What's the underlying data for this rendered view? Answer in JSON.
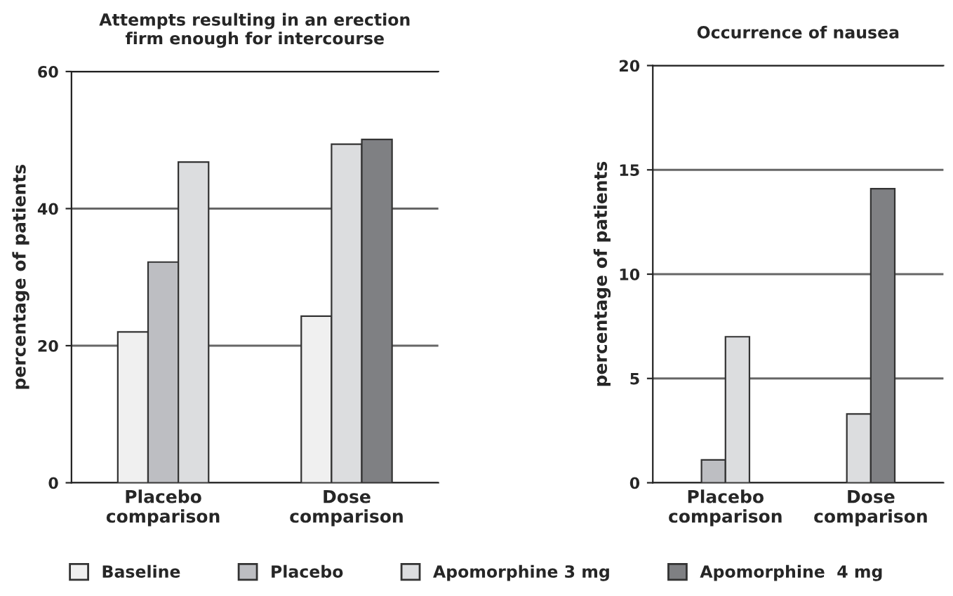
{
  "chart_data": [
    {
      "type": "bar",
      "title": "Attempts resulting in an erection\nfirm enough for intercourse",
      "ylabel": "percentage of patients",
      "categories": [
        "Placebo\ncomparison",
        "Dose\ncomparison"
      ],
      "series": [
        {
          "name": "Baseline",
          "color": "#f0f0f0",
          "values": [
            22,
            24.3
          ]
        },
        {
          "name": "Placebo",
          "color": "#bdbec2",
          "values": [
            32.2,
            null
          ]
        },
        {
          "name": "Apomorphine 3 mg",
          "color": "#dcdddf",
          "values": [
            46.8,
            49.4
          ]
        },
        {
          "name": "Apomorphine  4 mg",
          "color": "#7f8083",
          "values": [
            null,
            50.1
          ]
        }
      ],
      "ylim": [
        0,
        60
      ],
      "yticks": [
        0,
        20,
        40,
        60
      ],
      "grid": "y",
      "legend": "bottom"
    },
    {
      "type": "bar",
      "title": "Occurrence of nausea",
      "ylabel": "percentage of patients",
      "categories": [
        "Placebo\ncomparison",
        "Dose\ncomparison"
      ],
      "series": [
        {
          "color": "#bdbec2",
          "values": [
            1.1,
            null
          ]
        },
        {
          "color": "#dcdddf",
          "values": [
            7.0,
            3.3
          ]
        },
        {
          "color": "#7f8083",
          "values": [
            null,
            14.1
          ]
        }
      ],
      "ylim": [
        0,
        20
      ],
      "yticks": [
        0,
        5,
        10,
        15,
        20
      ],
      "grid": "y"
    }
  ]
}
